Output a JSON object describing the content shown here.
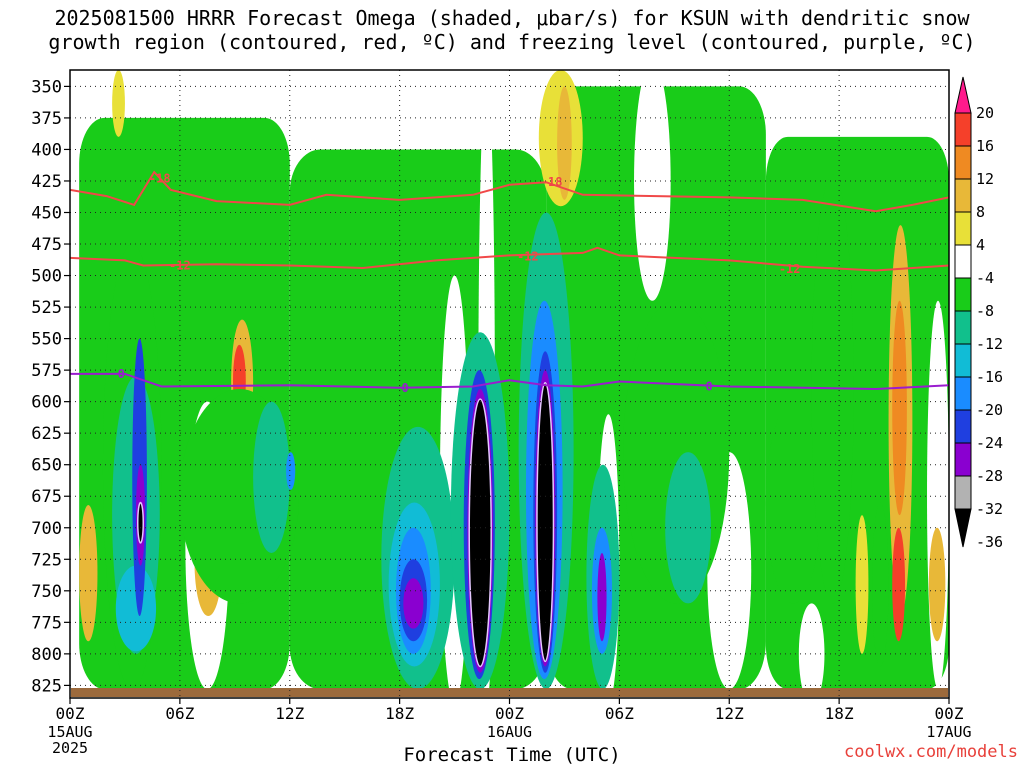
{
  "header": {
    "title_line1": "2025081500 HRRR Forecast Omega (shaded, μbar/s) for KSUN with dendritic snow",
    "title_line2": "growth region (contoured, red, ºC) and freezing level (contoured, purple, ºC)"
  },
  "footer": {
    "credit": "coolwx.com/models"
  },
  "chart_data": {
    "type": "heatmap",
    "xlabel": "Forecast Time (UTC)",
    "ylabel": "",
    "x_ticks": [
      {
        "h": 0,
        "label": "00Z",
        "sub": [
          "15AUG",
          "2025"
        ]
      },
      {
        "h": 6,
        "label": "06Z",
        "sub": []
      },
      {
        "h": 12,
        "label": "12Z",
        "sub": []
      },
      {
        "h": 18,
        "label": "18Z",
        "sub": []
      },
      {
        "h": 24,
        "label": "00Z",
        "sub": [
          "16AUG"
        ]
      },
      {
        "h": 30,
        "label": "06Z",
        "sub": []
      },
      {
        "h": 36,
        "label": "12Z",
        "sub": []
      },
      {
        "h": 42,
        "label": "18Z",
        "sub": []
      },
      {
        "h": 48,
        "label": "00Z",
        "sub": [
          "17AUG"
        ]
      }
    ],
    "xlim": [
      0,
      48
    ],
    "ylim": [
      337,
      835
    ],
    "y_ticks": [
      350,
      375,
      400,
      425,
      450,
      475,
      500,
      525,
      550,
      575,
      600,
      625,
      650,
      675,
      700,
      725,
      750,
      775,
      800,
      825
    ],
    "colorbar": {
      "labels": [
        "20",
        "16",
        "12",
        "8",
        "4",
        "-4",
        "-8",
        "-12",
        "-16",
        "-20",
        "-24",
        "-28",
        "-32",
        "-36"
      ],
      "colors": [
        "#ff1a8c",
        "#f5402a",
        "#ef8a22",
        "#e8b838",
        "#e8e038",
        "#ffffff",
        "#19cc19",
        "#11c08c",
        "#11bcd6",
        "#1a8cff",
        "#1f3fe0",
        "#8a00d0",
        "#b2b2b2",
        "#000000"
      ]
    },
    "contours": [
      {
        "name": "dendritic-minus18",
        "label": "-18",
        "color": "#f04848",
        "points": [
          [
            0,
            432
          ],
          [
            2,
            437
          ],
          [
            3.5,
            444
          ],
          [
            4.6,
            418
          ],
          [
            5.5,
            432
          ],
          [
            8,
            441
          ],
          [
            12,
            444
          ],
          [
            14,
            436
          ],
          [
            18,
            440
          ],
          [
            22,
            436
          ],
          [
            24,
            428
          ],
          [
            26,
            426
          ],
          [
            28,
            436
          ],
          [
            36,
            438
          ],
          [
            40,
            440
          ],
          [
            44,
            449
          ],
          [
            46,
            444
          ],
          [
            48,
            438
          ]
        ]
      },
      {
        "name": "dendritic-minus12",
        "label": "-12",
        "color": "#f04848",
        "points": [
          [
            0,
            486
          ],
          [
            3,
            488
          ],
          [
            4,
            492
          ],
          [
            8,
            491
          ],
          [
            12,
            492
          ],
          [
            16,
            494
          ],
          [
            20,
            488
          ],
          [
            24,
            484
          ],
          [
            28,
            482
          ],
          [
            28.8,
            478
          ],
          [
            30,
            484
          ],
          [
            36,
            488
          ],
          [
            40,
            493
          ],
          [
            44,
            496
          ],
          [
            48,
            492
          ]
        ]
      },
      {
        "name": "freezing-level-0",
        "label": "0",
        "color": "#9a1ccf",
        "points": [
          [
            0,
            578
          ],
          [
            3,
            578
          ],
          [
            5,
            588
          ],
          [
            12,
            587
          ],
          [
            18,
            589
          ],
          [
            22,
            588
          ],
          [
            24,
            583
          ],
          [
            26,
            587
          ],
          [
            28,
            588
          ],
          [
            30,
            584
          ],
          [
            36,
            588
          ],
          [
            44,
            590
          ],
          [
            48,
            587
          ]
        ]
      }
    ],
    "contour_labels": [
      {
        "text": "-18",
        "h": 4.9,
        "p": 423
      },
      {
        "text": "-12",
        "h": 6.0,
        "p": 492
      },
      {
        "text": "0",
        "h": 2.8,
        "p": 578
      },
      {
        "text": "-18",
        "h": 26.3,
        "p": 426
      },
      {
        "text": "-12",
        "h": 25.0,
        "p": 485
      },
      {
        "text": "-12",
        "h": 39.3,
        "p": 495
      },
      {
        "text": "0",
        "h": 18.3,
        "p": 589
      },
      {
        "text": "0",
        "h": 34.9,
        "p": 588
      }
    ],
    "omega_features": [
      {
        "type": "field",
        "h": [
          0.5,
          12.0
        ],
        "p": [
          375,
          828
        ],
        "level": -6
      },
      {
        "type": "field",
        "h": [
          12.0,
          26.0
        ],
        "p": [
          400,
          828
        ],
        "level": -6
      },
      {
        "type": "field",
        "h": [
          26.0,
          38.0
        ],
        "p": [
          350,
          828
        ],
        "level": -6
      },
      {
        "type": "field",
        "h": [
          38.0,
          48.0
        ],
        "p": [
          390,
          828
        ],
        "level": -6
      },
      {
        "type": "blob",
        "h": [
          6.3,
          8.7
        ],
        "p": [
          600,
          828
        ],
        "level": 1
      },
      {
        "type": "blob",
        "h": [
          20.2,
          21.8
        ],
        "p": [
          500,
          840
        ],
        "level": 1
      },
      {
        "type": "blob",
        "h": [
          22.3,
          23.2
        ],
        "p": [
          340,
          840
        ],
        "level": 1
      },
      {
        "type": "blob",
        "h": [
          28.8,
          30.0
        ],
        "p": [
          610,
          840
        ],
        "level": 1
      },
      {
        "type": "blob",
        "h": [
          30.8,
          32.8
        ],
        "p": [
          330,
          520
        ],
        "level": 1
      },
      {
        "type": "blob",
        "h": [
          34.8,
          37.2
        ],
        "p": [
          640,
          828
        ],
        "level": 1
      },
      {
        "type": "blob",
        "h": [
          39.8,
          41.2
        ],
        "p": [
          760,
          840
        ],
        "level": 1
      },
      {
        "type": "blob",
        "h": [
          46.8,
          48.0
        ],
        "p": [
          520,
          828
        ],
        "level": 1
      },
      {
        "type": "blob",
        "h": [
          2.3,
          3.0
        ],
        "p": [
          337,
          390
        ],
        "level": 5
      },
      {
        "type": "blob",
        "h": [
          25.6,
          28.0
        ],
        "p": [
          337,
          445
        ],
        "level": 5
      },
      {
        "type": "blob",
        "h": [
          26.6,
          27.4
        ],
        "p": [
          350,
          440
        ],
        "level": 10
      },
      {
        "type": "blob",
        "h": [
          0.5,
          1.5
        ],
        "p": [
          682,
          790
        ],
        "level": 9
      },
      {
        "type": "blob",
        "h": [
          6.8,
          8.3
        ],
        "p": [
          685,
          770
        ],
        "level": 9
      },
      {
        "type": "blob",
        "h": [
          8.8,
          10.0
        ],
        "p": [
          535,
          635
        ],
        "level": 11
      },
      {
        "type": "blob",
        "h": [
          8.9,
          9.6
        ],
        "p": [
          555,
          612
        ],
        "level": 17
      },
      {
        "type": "blob",
        "h": [
          22.1,
          23.3
        ],
        "p": [
          655,
          815
        ],
        "level": 11
      },
      {
        "type": "blob",
        "h": [
          22.4,
          23.0
        ],
        "p": [
          690,
          790
        ],
        "level": 17
      },
      {
        "type": "blob",
        "h": [
          42.9,
          43.6
        ],
        "p": [
          690,
          800
        ],
        "level": 7
      },
      {
        "type": "blob",
        "h": [
          44.7,
          46.0
        ],
        "p": [
          460,
          770
        ],
        "level": 9
      },
      {
        "type": "blob",
        "h": [
          44.9,
          45.7
        ],
        "p": [
          520,
          690
        ],
        "level": 13
      },
      {
        "type": "blob",
        "h": [
          44.9,
          45.6
        ],
        "p": [
          700,
          790
        ],
        "level": 18
      },
      {
        "type": "blob",
        "h": [
          46.9,
          47.8
        ],
        "p": [
          700,
          790
        ],
        "level": 9
      },
      {
        "type": "blob",
        "h": [
          1.8,
          5.0
        ],
        "p": [
          475,
          828
        ],
        "level": -10
      },
      {
        "type": "blob",
        "h": [
          2.3,
          4.9
        ],
        "p": [
          580,
          800
        ],
        "level": -14
      },
      {
        "type": "blob",
        "h": [
          2.5,
          4.7
        ],
        "p": [
          730,
          798
        ],
        "level": -18
      },
      {
        "type": "blob",
        "h": [
          3.4,
          4.2
        ],
        "p": [
          550,
          770
        ],
        "level": -26
      },
      {
        "type": "blob",
        "h": [
          3.6,
          4.1
        ],
        "p": [
          650,
          730
        ],
        "level": -31
      },
      {
        "type": "blob",
        "h": [
          3.7,
          4.0
        ],
        "p": [
          680,
          712
        ],
        "level": -40
      },
      {
        "type": "blob",
        "h": [
          6.0,
          12.5
        ],
        "p": [
          590,
          760
        ],
        "level": -10
      },
      {
        "type": "blob",
        "h": [
          10.0,
          12.0
        ],
        "p": [
          600,
          720
        ],
        "level": -14
      },
      {
        "type": "blob",
        "h": [
          11.8,
          12.3
        ],
        "p": [
          640,
          670
        ],
        "level": -22
      },
      {
        "type": "blob",
        "h": [
          17.0,
          21.0
        ],
        "p": [
          620,
          828
        ],
        "level": -14
      },
      {
        "type": "blob",
        "h": [
          17.4,
          20.2
        ],
        "p": [
          680,
          810
        ],
        "level": -18
      },
      {
        "type": "blob",
        "h": [
          17.8,
          19.7
        ],
        "p": [
          700,
          800
        ],
        "level": -22
      },
      {
        "type": "blob",
        "h": [
          18.0,
          19.5
        ],
        "p": [
          725,
          790
        ],
        "level": -26
      },
      {
        "type": "blob",
        "h": [
          18.2,
          19.3
        ],
        "p": [
          740,
          780
        ],
        "level": -31
      },
      {
        "type": "blob",
        "h": [
          20.8,
          24.0
        ],
        "p": [
          545,
          828
        ],
        "level": -14
      },
      {
        "type": "blob",
        "h": [
          21.5,
          23.2
        ],
        "p": [
          575,
          820
        ],
        "level": -26
      },
      {
        "type": "blob",
        "h": [
          21.7,
          23.1
        ],
        "p": [
          590,
          815
        ],
        "level": -31
      },
      {
        "type": "blob",
        "h": [
          21.8,
          23.0
        ],
        "p": [
          598,
          810
        ],
        "level": -40
      },
      {
        "type": "blob",
        "h": [
          24.5,
          27.5
        ],
        "p": [
          450,
          828
        ],
        "level": -14
      },
      {
        "type": "blob",
        "h": [
          24.9,
          26.9
        ],
        "p": [
          520,
          820
        ],
        "level": -22
      },
      {
        "type": "blob",
        "h": [
          25.3,
          26.6
        ],
        "p": [
          560,
          815
        ],
        "level": -26
      },
      {
        "type": "blob",
        "h": [
          25.4,
          26.5
        ],
        "p": [
          575,
          810
        ],
        "level": -31
      },
      {
        "type": "blob",
        "h": [
          25.5,
          26.4
        ],
        "p": [
          585,
          806
        ],
        "level": -40
      },
      {
        "type": "blob",
        "h": [
          28.2,
          30.0
        ],
        "p": [
          650,
          828
        ],
        "level": -14
      },
      {
        "type": "blob",
        "h": [
          28.5,
          29.6
        ],
        "p": [
          700,
          800
        ],
        "level": -22
      },
      {
        "type": "blob",
        "h": [
          28.8,
          29.3
        ],
        "p": [
          720,
          790
        ],
        "level": -28
      },
      {
        "type": "blob",
        "h": [
          30.2,
          36.0
        ],
        "p": [
          520,
          760
        ],
        "level": -10
      },
      {
        "type": "blob",
        "h": [
          32.5,
          35.0
        ],
        "p": [
          640,
          760
        ],
        "level": -14
      },
      {
        "type": "blob",
        "h": [
          38.0,
          41.0
        ],
        "p": [
          600,
          760
        ],
        "level": -10
      },
      {
        "type": "blob",
        "h": [
          40.5,
          42.8
        ],
        "p": [
          420,
          760
        ],
        "level": -10
      },
      {
        "type": "blob",
        "h": [
          43.8,
          44.7
        ],
        "p": [
          680,
          810
        ],
        "level": -10
      }
    ]
  }
}
